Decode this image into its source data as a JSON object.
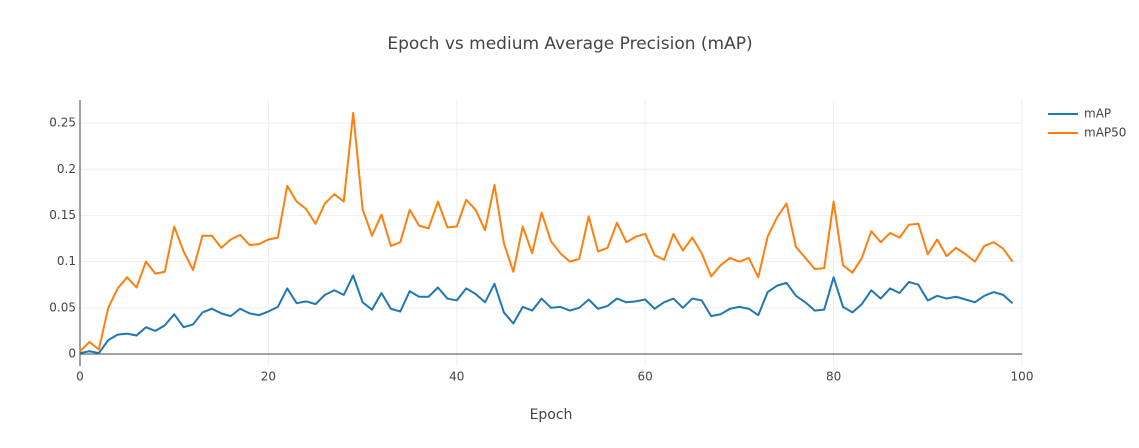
{
  "chart_data": {
    "type": "line",
    "title": "Epoch vs medium Average Precision (mAP)",
    "x_label": "Epoch",
    "x": [
      0,
      1,
      2,
      3,
      4,
      5,
      6,
      7,
      8,
      9,
      10,
      11,
      12,
      13,
      14,
      15,
      16,
      17,
      18,
      19,
      20,
      21,
      22,
      23,
      24,
      25,
      26,
      27,
      28,
      29,
      30,
      31,
      32,
      33,
      34,
      35,
      36,
      37,
      38,
      39,
      40,
      41,
      42,
      43,
      44,
      45,
      46,
      47,
      48,
      49,
      50,
      51,
      52,
      53,
      54,
      55,
      56,
      57,
      58,
      59,
      60,
      61,
      62,
      63,
      64,
      65,
      66,
      67,
      68,
      69,
      70,
      71,
      72,
      73,
      74,
      75,
      76,
      77,
      78,
      79,
      80,
      81,
      82,
      83,
      84,
      85,
      86,
      87,
      88,
      89,
      90,
      91,
      92,
      93,
      94,
      95,
      96,
      97,
      98,
      99
    ],
    "series": [
      {
        "name": "mAP",
        "color": "#1f77b4",
        "values": [
          0.001,
          0.003,
          0.001,
          0.015,
          0.021,
          0.022,
          0.02,
          0.029,
          0.025,
          0.031,
          0.043,
          0.029,
          0.032,
          0.045,
          0.049,
          0.044,
          0.041,
          0.049,
          0.044,
          0.042,
          0.046,
          0.051,
          0.071,
          0.055,
          0.057,
          0.054,
          0.064,
          0.069,
          0.064,
          0.085,
          0.056,
          0.048,
          0.066,
          0.049,
          0.046,
          0.068,
          0.062,
          0.062,
          0.072,
          0.06,
          0.058,
          0.071,
          0.065,
          0.056,
          0.076,
          0.045,
          0.033,
          0.051,
          0.047,
          0.06,
          0.05,
          0.051,
          0.047,
          0.05,
          0.059,
          0.049,
          0.052,
          0.06,
          0.056,
          0.057,
          0.059,
          0.049,
          0.056,
          0.06,
          0.05,
          0.06,
          0.058,
          0.041,
          0.043,
          0.049,
          0.051,
          0.049,
          0.042,
          0.067,
          0.074,
          0.077,
          0.063,
          0.056,
          0.047,
          0.048,
          0.083,
          0.051,
          0.045,
          0.054,
          0.069,
          0.06,
          0.071,
          0.066,
          0.078,
          0.075,
          0.058,
          0.063,
          0.06,
          0.062,
          0.059,
          0.056,
          0.063,
          0.067,
          0.064,
          0.055
        ]
      },
      {
        "name": "mAP50",
        "color": "#ff7f0e",
        "values": [
          0.003,
          0.013,
          0.005,
          0.05,
          0.071,
          0.083,
          0.072,
          0.1,
          0.087,
          0.089,
          0.138,
          0.111,
          0.091,
          0.128,
          0.128,
          0.115,
          0.124,
          0.129,
          0.118,
          0.119,
          0.124,
          0.126,
          0.182,
          0.165,
          0.157,
          0.141,
          0.163,
          0.173,
          0.165,
          0.261,
          0.157,
          0.128,
          0.151,
          0.117,
          0.121,
          0.156,
          0.139,
          0.136,
          0.165,
          0.137,
          0.138,
          0.167,
          0.156,
          0.134,
          0.183,
          0.12,
          0.089,
          0.138,
          0.109,
          0.153,
          0.122,
          0.109,
          0.1,
          0.103,
          0.149,
          0.111,
          0.115,
          0.142,
          0.121,
          0.127,
          0.13,
          0.107,
          0.102,
          0.13,
          0.112,
          0.126,
          0.109,
          0.084,
          0.096,
          0.104,
          0.1,
          0.104,
          0.083,
          0.127,
          0.148,
          0.163,
          0.116,
          0.104,
          0.092,
          0.093,
          0.165,
          0.096,
          0.088,
          0.104,
          0.133,
          0.121,
          0.131,
          0.126,
          0.14,
          0.141,
          0.108,
          0.124,
          0.106,
          0.115,
          0.108,
          0.1,
          0.117,
          0.121,
          0.114,
          0.1
        ]
      }
    ],
    "xlim": [
      0,
      100
    ],
    "xticks": [
      0,
      20,
      40,
      60,
      80,
      100
    ],
    "ylim": [
      -0.013,
      0.275
    ],
    "yticks": [
      0,
      0.05,
      0.1,
      0.15,
      0.2,
      0.25
    ],
    "grid": true,
    "legend": "top-right"
  }
}
